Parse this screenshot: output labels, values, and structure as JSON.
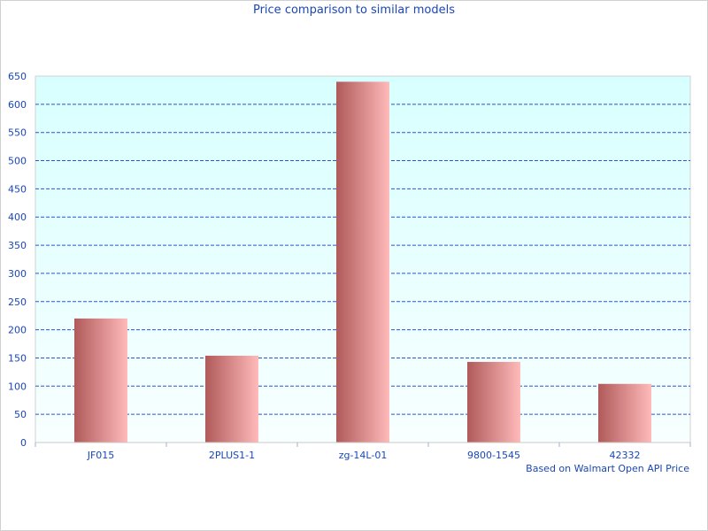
{
  "chart_data": {
    "type": "bar",
    "title": "Price comparison to similar models",
    "annotation": "Based on Walmart Open API Price",
    "categories": [
      "JF015",
      "2PLUS1-1",
      "zg-14L-01",
      "9800-1545",
      "42332"
    ],
    "values": [
      220,
      154,
      640,
      143,
      104
    ],
    "ylim": [
      0,
      650
    ],
    "yticks": [
      0,
      50,
      100,
      150,
      200,
      250,
      300,
      350,
      400,
      450,
      500,
      550,
      600,
      650
    ],
    "grid": true,
    "grid_style": "dashed",
    "colors": {
      "bar_dark": "#b05a5a",
      "bar_light": "#ffbaba",
      "grid": "#2b55cc",
      "text": "#1a46b8",
      "plot_bg_top": "#d8ffff",
      "plot_bg_bottom": "#f8ffff"
    }
  }
}
